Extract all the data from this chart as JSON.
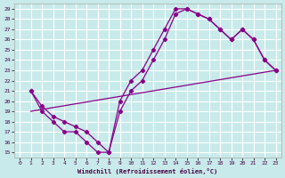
{
  "xlabel": "Windchill (Refroidissement éolien,°C)",
  "bg_color": "#c8eaea",
  "grid_color": "#b0d8d8",
  "line_color": "#880088",
  "xlim": [
    -0.5,
    23.5
  ],
  "ylim": [
    14.5,
    29.5
  ],
  "xticks": [
    0,
    1,
    2,
    3,
    4,
    5,
    6,
    7,
    8,
    9,
    10,
    11,
    12,
    13,
    14,
    15,
    16,
    17,
    18,
    19,
    20,
    21,
    22,
    23
  ],
  "yticks": [
    15,
    16,
    17,
    18,
    19,
    20,
    21,
    22,
    23,
    24,
    25,
    26,
    27,
    28,
    29
  ],
  "curve1_x": [
    1,
    2,
    3,
    4,
    5,
    6,
    7,
    8,
    9,
    10,
    11,
    12,
    13,
    14,
    15,
    16,
    17,
    18,
    19,
    20,
    21,
    22,
    23
  ],
  "curve1_y": [
    21,
    19,
    18,
    17,
    17,
    16,
    15,
    15,
    20,
    22,
    23,
    25,
    27,
    29,
    29,
    28.5,
    28,
    27,
    26,
    27,
    26,
    24,
    23
  ],
  "curve2_x": [
    1,
    2,
    3,
    4,
    5,
    6,
    7,
    8,
    9,
    10,
    11,
    12,
    13,
    14,
    15,
    16,
    17,
    18,
    19,
    20,
    21,
    22,
    23
  ],
  "curve2_y": [
    21,
    19.5,
    18.5,
    18,
    17.5,
    17,
    16,
    15,
    19,
    21,
    22,
    24,
    26,
    28.5,
    29,
    28.5,
    28,
    27,
    26,
    27,
    26,
    24,
    23
  ],
  "curve3_x": [
    1,
    23
  ],
  "curve3_y": [
    19,
    23
  ]
}
